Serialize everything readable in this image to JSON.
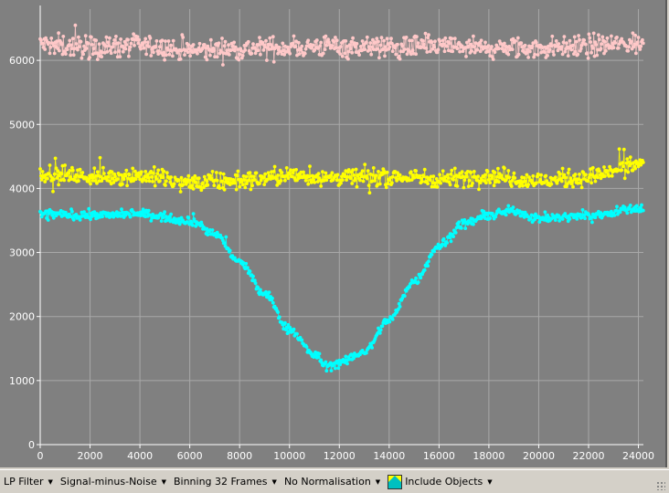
{
  "chart_data": {
    "type": "scatter",
    "title": "",
    "xlabel": "",
    "ylabel": "",
    "xlim": [
      0,
      24200
    ],
    "ylim": [
      0,
      6800
    ],
    "x_ticks": [
      0,
      2000,
      4000,
      6000,
      8000,
      10000,
      12000,
      14000,
      16000,
      18000,
      20000,
      22000,
      24000
    ],
    "y_ticks": [
      0,
      1000,
      2000,
      3000,
      4000,
      5000,
      6000
    ],
    "grid": true,
    "legend": "none",
    "series": [
      {
        "color": "#ffc8c8",
        "x": [
          0,
          2000,
          4000,
          6000,
          8000,
          10000,
          12000,
          14000,
          16000,
          18000,
          20000,
          22000,
          24000
        ],
        "y": [
          6250,
          6200,
          6230,
          6150,
          6180,
          6200,
          6230,
          6200,
          6220,
          6180,
          6190,
          6230,
          6260
        ]
      },
      {
        "color": "#ffff00",
        "x": [
          0,
          2000,
          4000,
          6000,
          8000,
          10000,
          12000,
          14000,
          16000,
          18000,
          20000,
          22000,
          24000
        ],
        "y": [
          4250,
          4180,
          4200,
          4080,
          4120,
          4200,
          4170,
          4180,
          4150,
          4200,
          4120,
          4180,
          4380
        ]
      },
      {
        "color": "#00ffff",
        "x": [
          0,
          2000,
          4000,
          6000,
          7000,
          8000,
          9000,
          10000,
          11000,
          11500,
          12000,
          13000,
          14000,
          15000,
          16000,
          17000,
          18000,
          19000,
          20000,
          22000,
          24000
        ],
        "y": [
          3600,
          3580,
          3600,
          3500,
          3300,
          2850,
          2350,
          1800,
          1400,
          1230,
          1270,
          1450,
          1950,
          2550,
          3100,
          3450,
          3580,
          3650,
          3530,
          3580,
          3680
        ]
      }
    ]
  },
  "toolbar": {
    "filter_label": "LP Filter",
    "mode_label": "Signal-minus-Noise",
    "binning_label": "Binning 32 Frames",
    "normalisation_label": "No Normalisation",
    "include_objects_label": "Include Objects",
    "include_objects_icon": "objects-icon"
  },
  "colors": {
    "plot_background": "#808080",
    "grid": "#a8a8a8",
    "axis": "#ffffff",
    "toolbar_background": "#d4d0c8"
  }
}
